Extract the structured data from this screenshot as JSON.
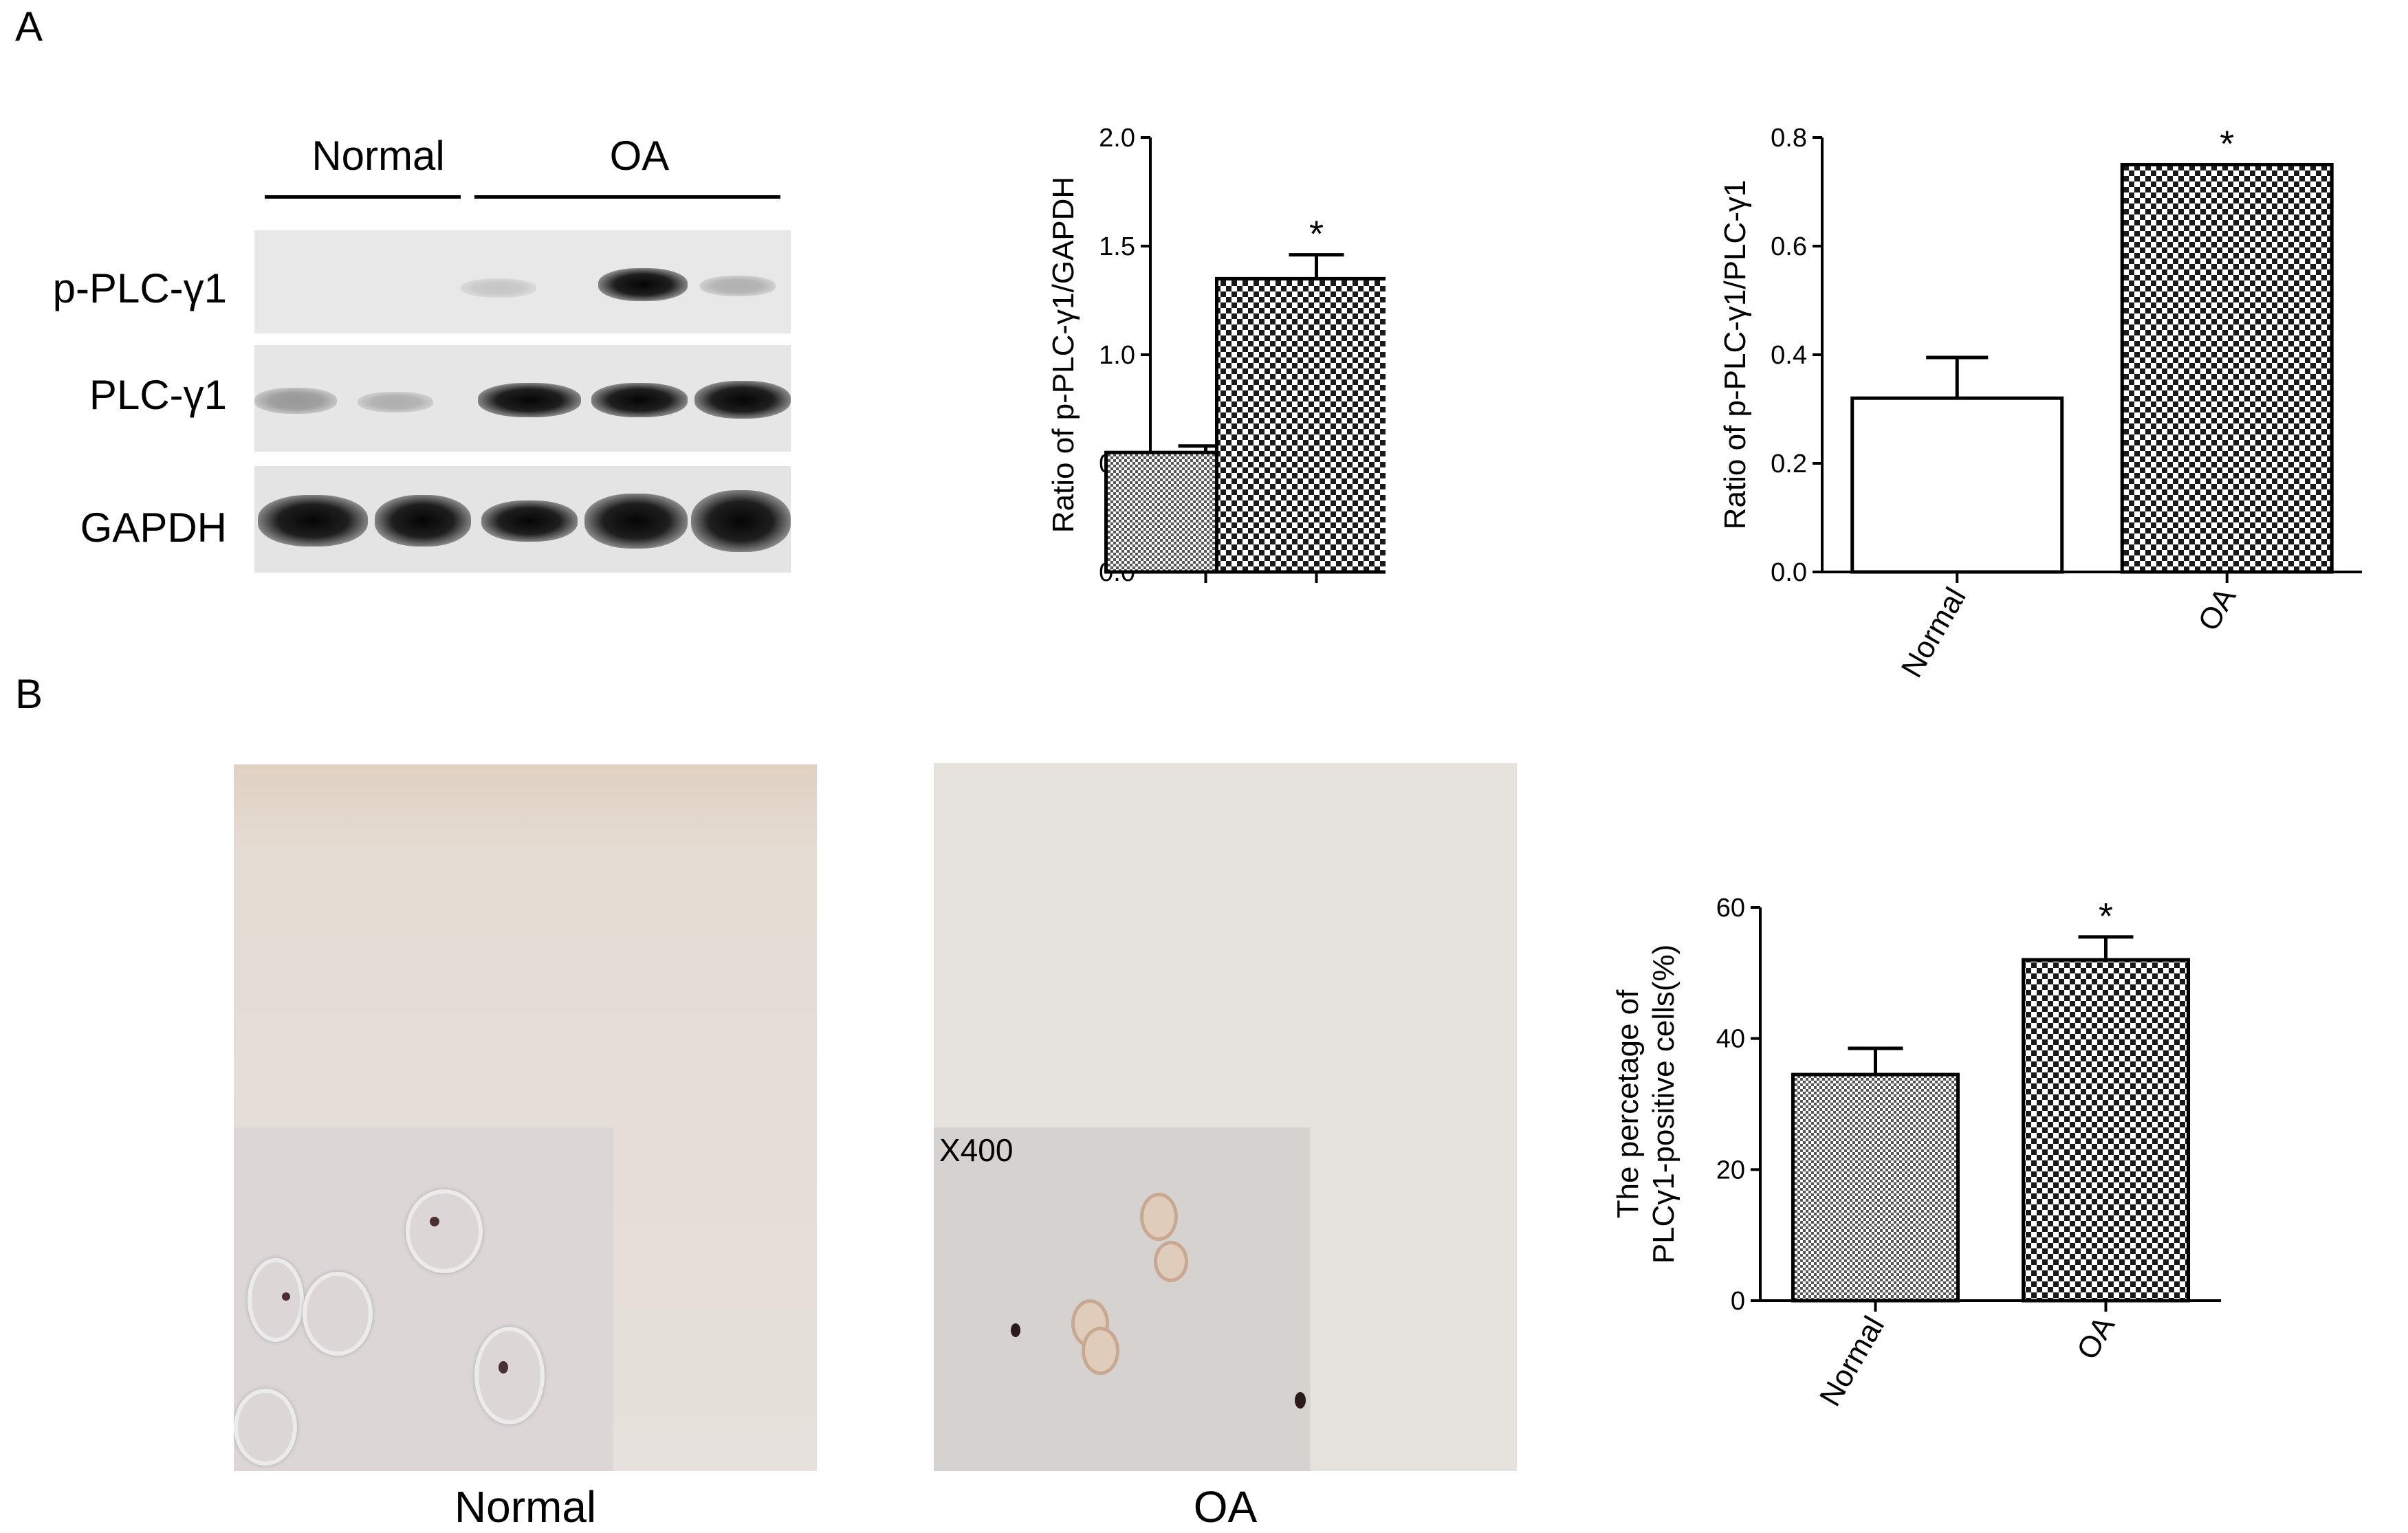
{
  "panel_labels": {
    "a": "A",
    "b": "B"
  },
  "western_blot": {
    "groups": [
      "Normal",
      "OA"
    ],
    "rows": [
      "p-PLC-γ1",
      "PLC-γ1",
      "GAPDH"
    ],
    "lanes_per_group": [
      2,
      3
    ]
  },
  "micrographs": {
    "captions": [
      "Normal",
      "OA"
    ],
    "magnification": "X400"
  },
  "chart_data": [
    {
      "type": "bar",
      "categories": [
        "",
        ""
      ],
      "values": [
        0.55,
        1.35
      ],
      "errors": [
        0.03,
        0.11
      ],
      "significance": [
        "",
        "*"
      ],
      "ylabel": "Ratio of p-PLC-γ1/GAPDH",
      "ylim": [
        0,
        2.0
      ],
      "yticks": [
        "0.0",
        "0.5",
        "1.0",
        "1.5",
        "2.0"
      ],
      "fills": [
        "fine-check",
        "coarse-check"
      ]
    },
    {
      "type": "bar",
      "categories": [
        "Normal",
        "OA"
      ],
      "values": [
        0.32,
        0.75
      ],
      "errors": [
        0.075,
        0.0
      ],
      "significance": [
        "",
        "*"
      ],
      "ylabel": "Ratio of p-PLC-γ1/PLC-γ1",
      "ylim": [
        0,
        0.8
      ],
      "yticks": [
        "0.0",
        "0.2",
        "0.4",
        "0.6",
        "0.8"
      ],
      "fills": [
        "white",
        "coarse-check"
      ]
    },
    {
      "type": "bar",
      "categories": [
        "Normal",
        "OA"
      ],
      "values": [
        34.5,
        52
      ],
      "errors": [
        4,
        3.5
      ],
      "significance": [
        "",
        "*"
      ],
      "ylabel_lines": [
        "The percetage of",
        "PLCγ1-positive cells(%)"
      ],
      "ylim": [
        0,
        60
      ],
      "yticks": [
        "0",
        "20",
        "40",
        "60"
      ],
      "fills": [
        "fine-check",
        "coarse-check"
      ]
    }
  ],
  "colors": {
    "bar_stroke": "#000000",
    "fine_check": "#555555",
    "coarse_check": "#1a1a1a",
    "stain": "#8a3a2a"
  }
}
